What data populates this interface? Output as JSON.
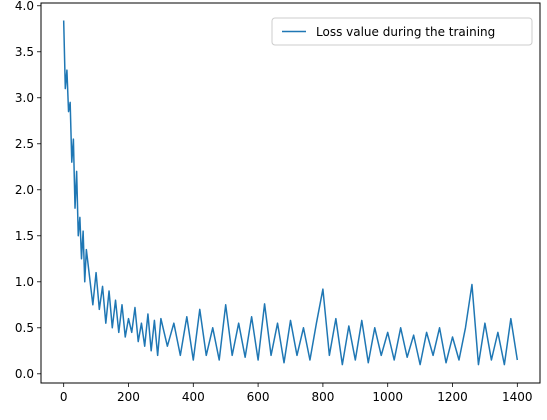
{
  "chart_data": {
    "type": "line",
    "title": "",
    "xlabel": "",
    "ylabel": "",
    "xlim": [
      -70,
      1470
    ],
    "ylim": [
      -0.1,
      4.03
    ],
    "x_ticks": [
      0,
      200,
      400,
      600,
      800,
      1000,
      1200,
      1400
    ],
    "x_tick_labels": [
      "0",
      "200",
      "400",
      "600",
      "800",
      "1000",
      "1200",
      "1400"
    ],
    "y_ticks": [
      0.0,
      0.5,
      1.0,
      1.5,
      2.0,
      2.5,
      3.0,
      3.5,
      4.0
    ],
    "y_tick_labels": [
      "0.0",
      "0.5",
      "1.0",
      "1.5",
      "2.0",
      "2.5",
      "3.0",
      "3.5",
      "4.0"
    ],
    "grid": false,
    "legend_position": "top-right",
    "series": [
      {
        "name": "Loss value during the training",
        "color": "#1f77b4",
        "x": [
          0,
          5,
          10,
          15,
          20,
          25,
          30,
          35,
          40,
          45,
          50,
          55,
          60,
          65,
          70,
          80,
          90,
          100,
          110,
          120,
          130,
          140,
          150,
          160,
          170,
          180,
          190,
          200,
          210,
          220,
          230,
          240,
          250,
          260,
          270,
          280,
          290,
          300,
          320,
          340,
          360,
          380,
          400,
          420,
          440,
          460,
          480,
          500,
          520,
          540,
          560,
          580,
          600,
          620,
          640,
          660,
          680,
          700,
          720,
          740,
          760,
          780,
          800,
          820,
          840,
          860,
          880,
          900,
          920,
          940,
          960,
          980,
          1000,
          1020,
          1040,
          1060,
          1080,
          1100,
          1120,
          1140,
          1160,
          1180,
          1200,
          1220,
          1240,
          1260,
          1280,
          1300,
          1320,
          1340,
          1360,
          1380,
          1400
        ],
        "values": [
          3.84,
          3.1,
          3.3,
          2.85,
          2.95,
          2.3,
          2.55,
          1.8,
          2.2,
          1.5,
          1.7,
          1.25,
          1.55,
          1.0,
          1.35,
          1.05,
          0.75,
          1.1,
          0.7,
          0.95,
          0.55,
          0.9,
          0.5,
          0.8,
          0.45,
          0.75,
          0.4,
          0.6,
          0.45,
          0.72,
          0.35,
          0.55,
          0.3,
          0.65,
          0.25,
          0.58,
          0.2,
          0.6,
          0.3,
          0.55,
          0.2,
          0.62,
          0.15,
          0.7,
          0.2,
          0.5,
          0.15,
          0.75,
          0.2,
          0.55,
          0.18,
          0.62,
          0.15,
          0.76,
          0.2,
          0.55,
          0.12,
          0.58,
          0.2,
          0.5,
          0.15,
          0.55,
          0.92,
          0.2,
          0.6,
          0.1,
          0.52,
          0.15,
          0.58,
          0.12,
          0.5,
          0.2,
          0.45,
          0.15,
          0.5,
          0.18,
          0.42,
          0.1,
          0.45,
          0.2,
          0.5,
          0.12,
          0.4,
          0.15,
          0.5,
          0.97,
          0.1,
          0.55,
          0.15,
          0.45,
          0.1,
          0.6,
          0.15
        ]
      }
    ]
  }
}
